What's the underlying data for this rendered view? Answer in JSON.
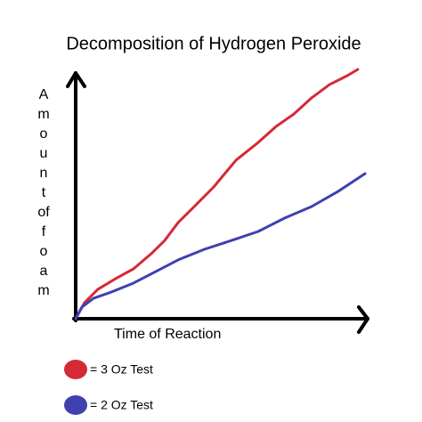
{
  "chart_data": {
    "type": "line",
    "title": "Decomposition of Hydrogen Peroxide",
    "x_label": "Time of Reaction",
    "y_label": [
      "A",
      "m",
      "o",
      "u",
      "n",
      "t",
      "of",
      "f",
      "o",
      "a",
      "m"
    ],
    "xlim": [
      0,
      100
    ],
    "ylim": [
      0,
      100
    ],
    "series": [
      {
        "name": "= 3 Oz Test",
        "color": "#d42a35",
        "x": [
          0,
          3,
          7.6,
          13.7,
          19.8,
          25.9,
          30.5,
          35.1,
          41.2,
          47.3,
          54.9,
          62.5,
          68.6,
          74.7,
          80.8,
          86.9,
          93,
          96.6
        ],
        "values": [
          0,
          6.4,
          11.8,
          16.1,
          20,
          26.1,
          31.4,
          38.6,
          45.7,
          52.9,
          63.6,
          70.7,
          77.1,
          82.1,
          88.6,
          93.9,
          97.5,
          100
        ]
      },
      {
        "name": "= 2 Oz Test",
        "color": "#4040b0",
        "x": [
          0,
          2.1,
          6.1,
          12.2,
          19.8,
          27.4,
          35.1,
          44.2,
          53.4,
          62.5,
          71.6,
          80.8,
          89.9,
          99.1
        ],
        "values": [
          0,
          4.6,
          8.2,
          10.7,
          14.3,
          18.9,
          23.6,
          27.9,
          31.4,
          35,
          40.4,
          45,
          51.1,
          58.2
        ]
      }
    ]
  }
}
